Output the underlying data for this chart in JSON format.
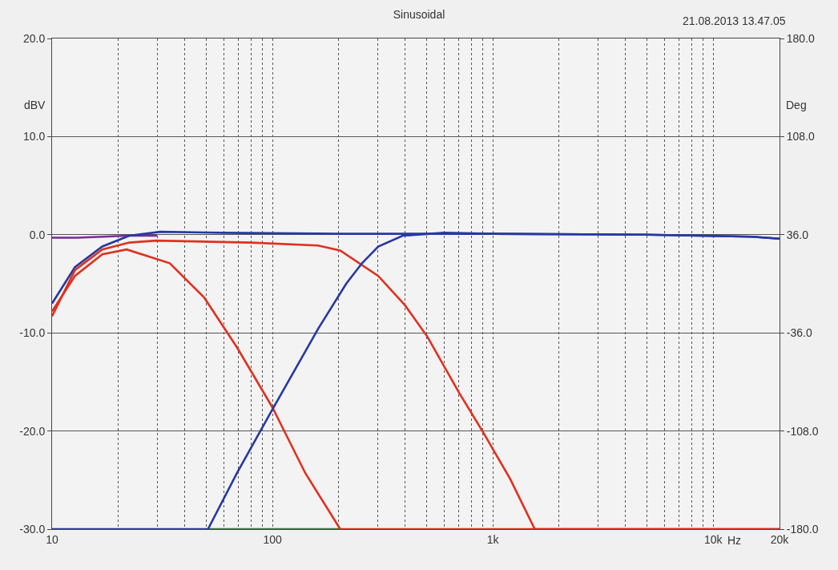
{
  "chart_data": {
    "type": "line",
    "title": "Sinusoidal",
    "xlabel": "Hz",
    "ylabel": "dBV",
    "y2label": "Deg",
    "annotations": [
      "21.08.2013 13.47.05"
    ],
    "log": "x",
    "grid": true,
    "marker": "none",
    "line_style": "solid",
    "xlim": [
      10,
      20000
    ],
    "xticks": [
      10,
      {
        "value": 20,
        "label": null
      },
      {
        "value": 30,
        "label": null
      },
      {
        "value": 40,
        "label": null
      },
      {
        "value": 50,
        "label": null
      },
      {
        "value": 60,
        "label": null
      },
      {
        "value": 70,
        "label": null
      },
      {
        "value": 80,
        "label": null
      },
      {
        "value": 90,
        "label": null
      },
      100,
      {
        "value": 200,
        "label": null
      },
      {
        "value": 300,
        "label": null
      },
      {
        "value": 400,
        "label": null
      },
      {
        "value": 500,
        "label": null
      },
      {
        "value": 600,
        "label": null
      },
      {
        "value": 700,
        "label": null
      },
      {
        "value": 800,
        "label": null
      },
      {
        "value": 900,
        "label": null
      },
      {
        "value": 1000,
        "label": "1k"
      },
      {
        "value": 2000,
        "label": null
      },
      {
        "value": 3000,
        "label": null
      },
      {
        "value": 4000,
        "label": null
      },
      {
        "value": 5000,
        "label": null
      },
      {
        "value": 6000,
        "label": null
      },
      {
        "value": 7000,
        "label": null
      },
      {
        "value": 8000,
        "label": null
      },
      {
        "value": 9000,
        "label": null
      },
      {
        "value": 10000,
        "label": "10k"
      },
      {
        "value": 20000,
        "label": "20k"
      }
    ],
    "ylim": [
      -30,
      20
    ],
    "yticks": [
      {
        "value": -30,
        "label": "-30.0"
      },
      {
        "value": -20,
        "label": "-20.0"
      },
      {
        "value": -10,
        "label": "-10.0"
      },
      {
        "value": 0,
        "label": "0.0"
      },
      {
        "value": 10,
        "label": "10.0"
      },
      {
        "value": 20,
        "label": "20.0"
      }
    ],
    "y2lim": [
      -180,
      180
    ],
    "y2ticks": [
      {
        "value": -180,
        "label": "-180.0"
      },
      {
        "value": -108,
        "label": "-108.0"
      },
      {
        "value": -36,
        "label": "-36.0"
      },
      {
        "value": 36,
        "label": "36.0"
      },
      {
        "value": 108,
        "label": "108.0"
      },
      {
        "value": 180,
        "label": "180.0"
      }
    ],
    "series": [
      {
        "color": "#3a7a3a",
        "x": [
          51,
          203
        ],
        "values": [
          -30,
          -30
        ]
      },
      {
        "color": "#7a2a9a",
        "x": [
          10,
          13,
          17,
          22,
          30
        ],
        "values": [
          -0.3,
          -0.3,
          -0.2,
          -0.1,
          -0.1
        ]
      },
      {
        "color": "#2838a0",
        "x": [
          10,
          12.7,
          16.9,
          22.4,
          31,
          60,
          200,
          1000,
          5000,
          15000,
          20000
        ],
        "values": [
          -7.0,
          -3.3,
          -1.2,
          -0.1,
          0.3,
          0.2,
          0.1,
          0.1,
          0.0,
          -0.2,
          -0.4
        ]
      },
      {
        "color": "#e03020",
        "x": [
          10,
          12.7,
          16.9,
          21.8,
          34.2,
          49,
          69.1,
          100,
          141,
          203,
          20000
        ],
        "values": [
          -7.8,
          -4.2,
          -2.0,
          -1.5,
          -2.9,
          -6.4,
          -11.5,
          -17.6,
          -24.3,
          -30,
          -30
        ]
      },
      {
        "color": "#e03020",
        "x": [
          10,
          12.7,
          16.9,
          22.4,
          29.6,
          80,
          161,
          203,
          302,
          400,
          505,
          703,
          908,
          1200,
          1550,
          20000
        ],
        "values": [
          -8.3,
          -3.6,
          -1.5,
          -0.8,
          -0.6,
          -0.8,
          -1.1,
          -1.6,
          -4.2,
          -7.2,
          -10.4,
          -16.1,
          -20.2,
          -24.9,
          -30,
          -30
        ]
      },
      {
        "color": "#2838a0",
        "x": [
          10,
          51,
          69,
          100,
          161,
          216,
          255,
          302,
          390,
          600,
          1000,
          5000,
          15000,
          20000
        ],
        "values": [
          -30,
          -30,
          -24.3,
          -17.8,
          -9.6,
          -5.0,
          -2.9,
          -1.2,
          -0.1,
          0.2,
          0.1,
          0.0,
          -0.2,
          -0.4
        ]
      }
    ]
  }
}
